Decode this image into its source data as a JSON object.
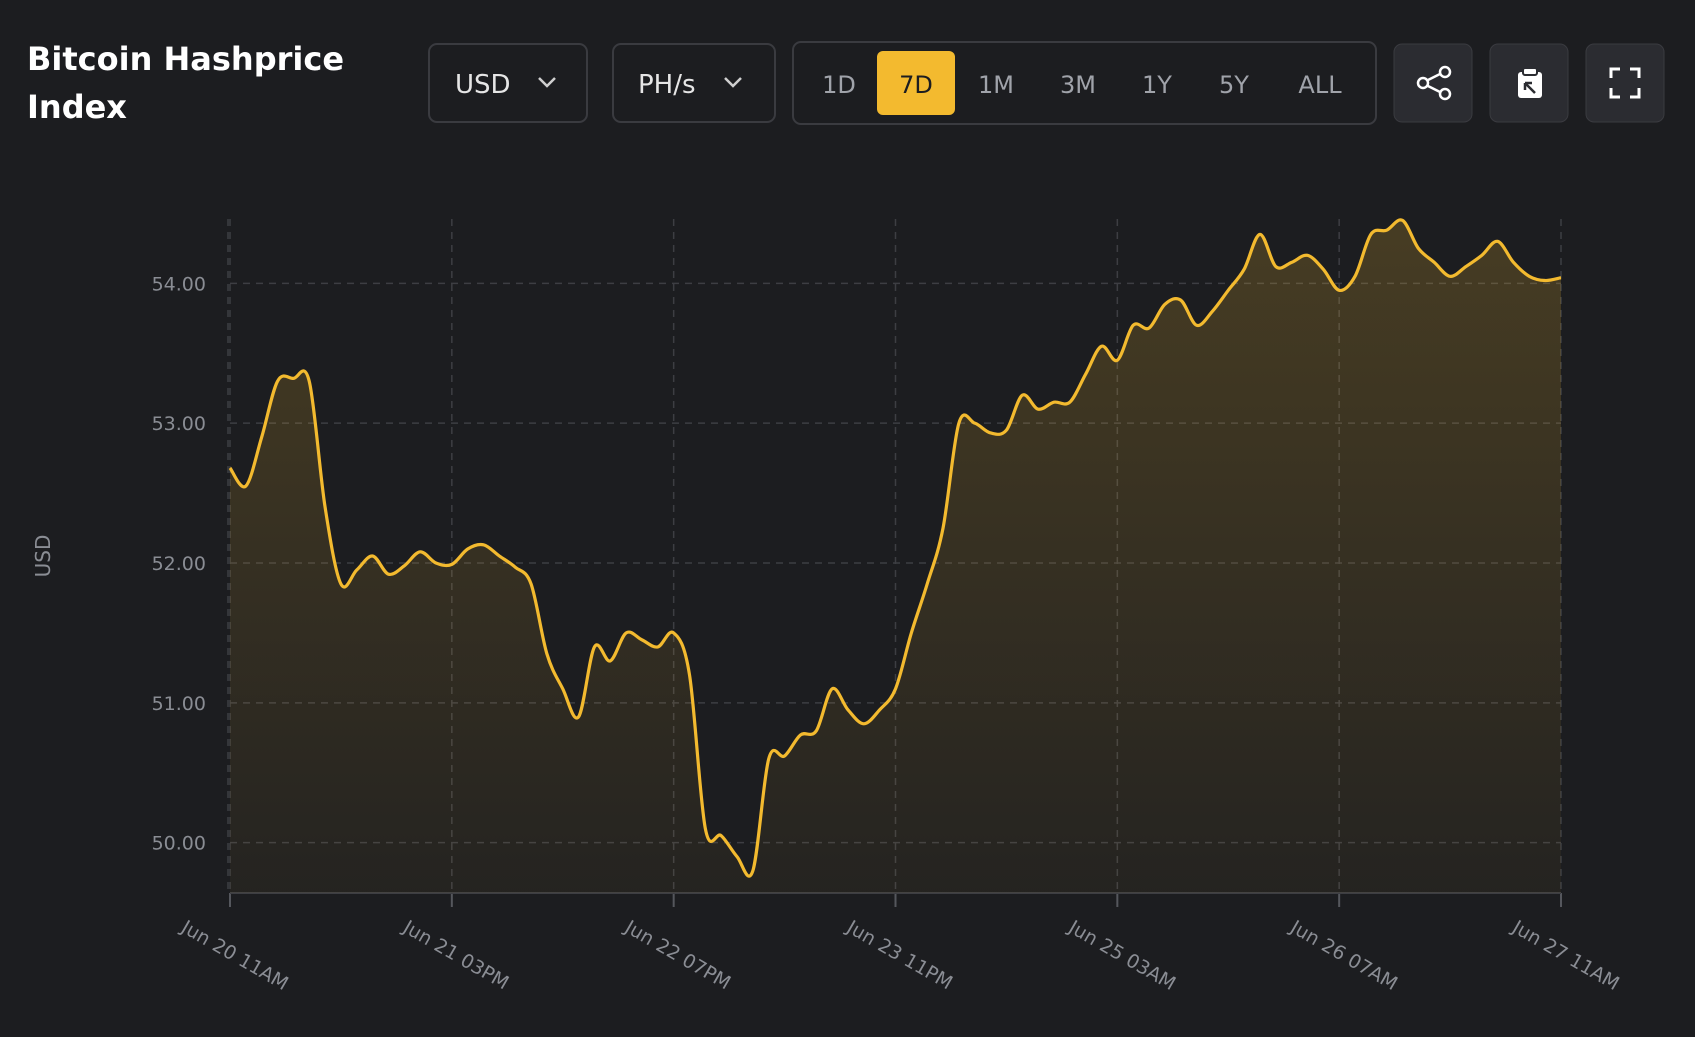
{
  "header": {
    "title_line1": "Bitcoin Hashprice",
    "title_line2": "Index"
  },
  "controls": {
    "currency": "USD",
    "unit": "PH/s",
    "ranges": [
      "1D",
      "7D",
      "1M",
      "3M",
      "1Y",
      "5Y",
      "ALL"
    ],
    "active_range": "7D"
  },
  "chart_data": {
    "type": "line",
    "ylabel": "USD",
    "categories": [
      "Jun 20 11AM",
      null,
      null,
      null,
      null,
      null,
      null,
      null,
      null,
      null,
      null,
      null,
      null,
      null,
      "Jun 21 03PM",
      null,
      null,
      null,
      null,
      null,
      null,
      null,
      null,
      null,
      null,
      null,
      null,
      null,
      "Jun 22 07PM",
      null,
      null,
      null,
      null,
      null,
      null,
      null,
      null,
      null,
      null,
      null,
      null,
      null,
      "Jun 23 11PM",
      null,
      null,
      null,
      null,
      null,
      null,
      null,
      null,
      null,
      null,
      null,
      null,
      null,
      "Jun 25 03AM",
      null,
      null,
      null,
      null,
      null,
      null,
      null,
      null,
      null,
      null,
      null,
      null,
      null,
      "Jun 26 07AM",
      null,
      null,
      null,
      null,
      null,
      null,
      null,
      null,
      null,
      null,
      null,
      null,
      null,
      "Jun 27 11AM"
    ],
    "series": [
      {
        "name": "Hashprice",
        "color": "#f3ba2f",
        "values": [
          52.68,
          52.55,
          52.9,
          53.3,
          53.32,
          53.3,
          52.4,
          51.85,
          51.95,
          52.05,
          51.92,
          51.98,
          52.08,
          52.0,
          51.99,
          52.1,
          52.13,
          52.05,
          51.97,
          51.85,
          51.35,
          51.1,
          50.9,
          51.4,
          51.3,
          51.5,
          51.45,
          51.4,
          51.5,
          51.2,
          50.1,
          50.05,
          49.9,
          49.8,
          50.6,
          50.62,
          50.77,
          50.8,
          51.1,
          50.95,
          50.85,
          50.95,
          51.1,
          51.5,
          51.85,
          52.25,
          53.0,
          53.0,
          52.93,
          52.95,
          53.2,
          53.1,
          53.15,
          53.15,
          53.35,
          53.55,
          53.45,
          53.7,
          53.68,
          53.85,
          53.88,
          53.7,
          53.8,
          53.95,
          54.1,
          54.35,
          54.12,
          54.15,
          54.2,
          54.1,
          53.95,
          54.05,
          54.35,
          54.38,
          54.45,
          54.25,
          54.15,
          54.05,
          54.12,
          54.2,
          54.3,
          54.15,
          54.05,
          54.02,
          54.04
        ]
      }
    ],
    "ylim": [
      49.64,
      54.46
    ],
    "yticks": [
      {
        "value": 50,
        "label": "50.00"
      },
      {
        "value": 51,
        "label": "51.00"
      },
      {
        "value": 52,
        "label": "52.00"
      },
      {
        "value": 53,
        "label": "53.00"
      },
      {
        "value": 54,
        "label": "54.00"
      }
    ],
    "grid": true
  }
}
